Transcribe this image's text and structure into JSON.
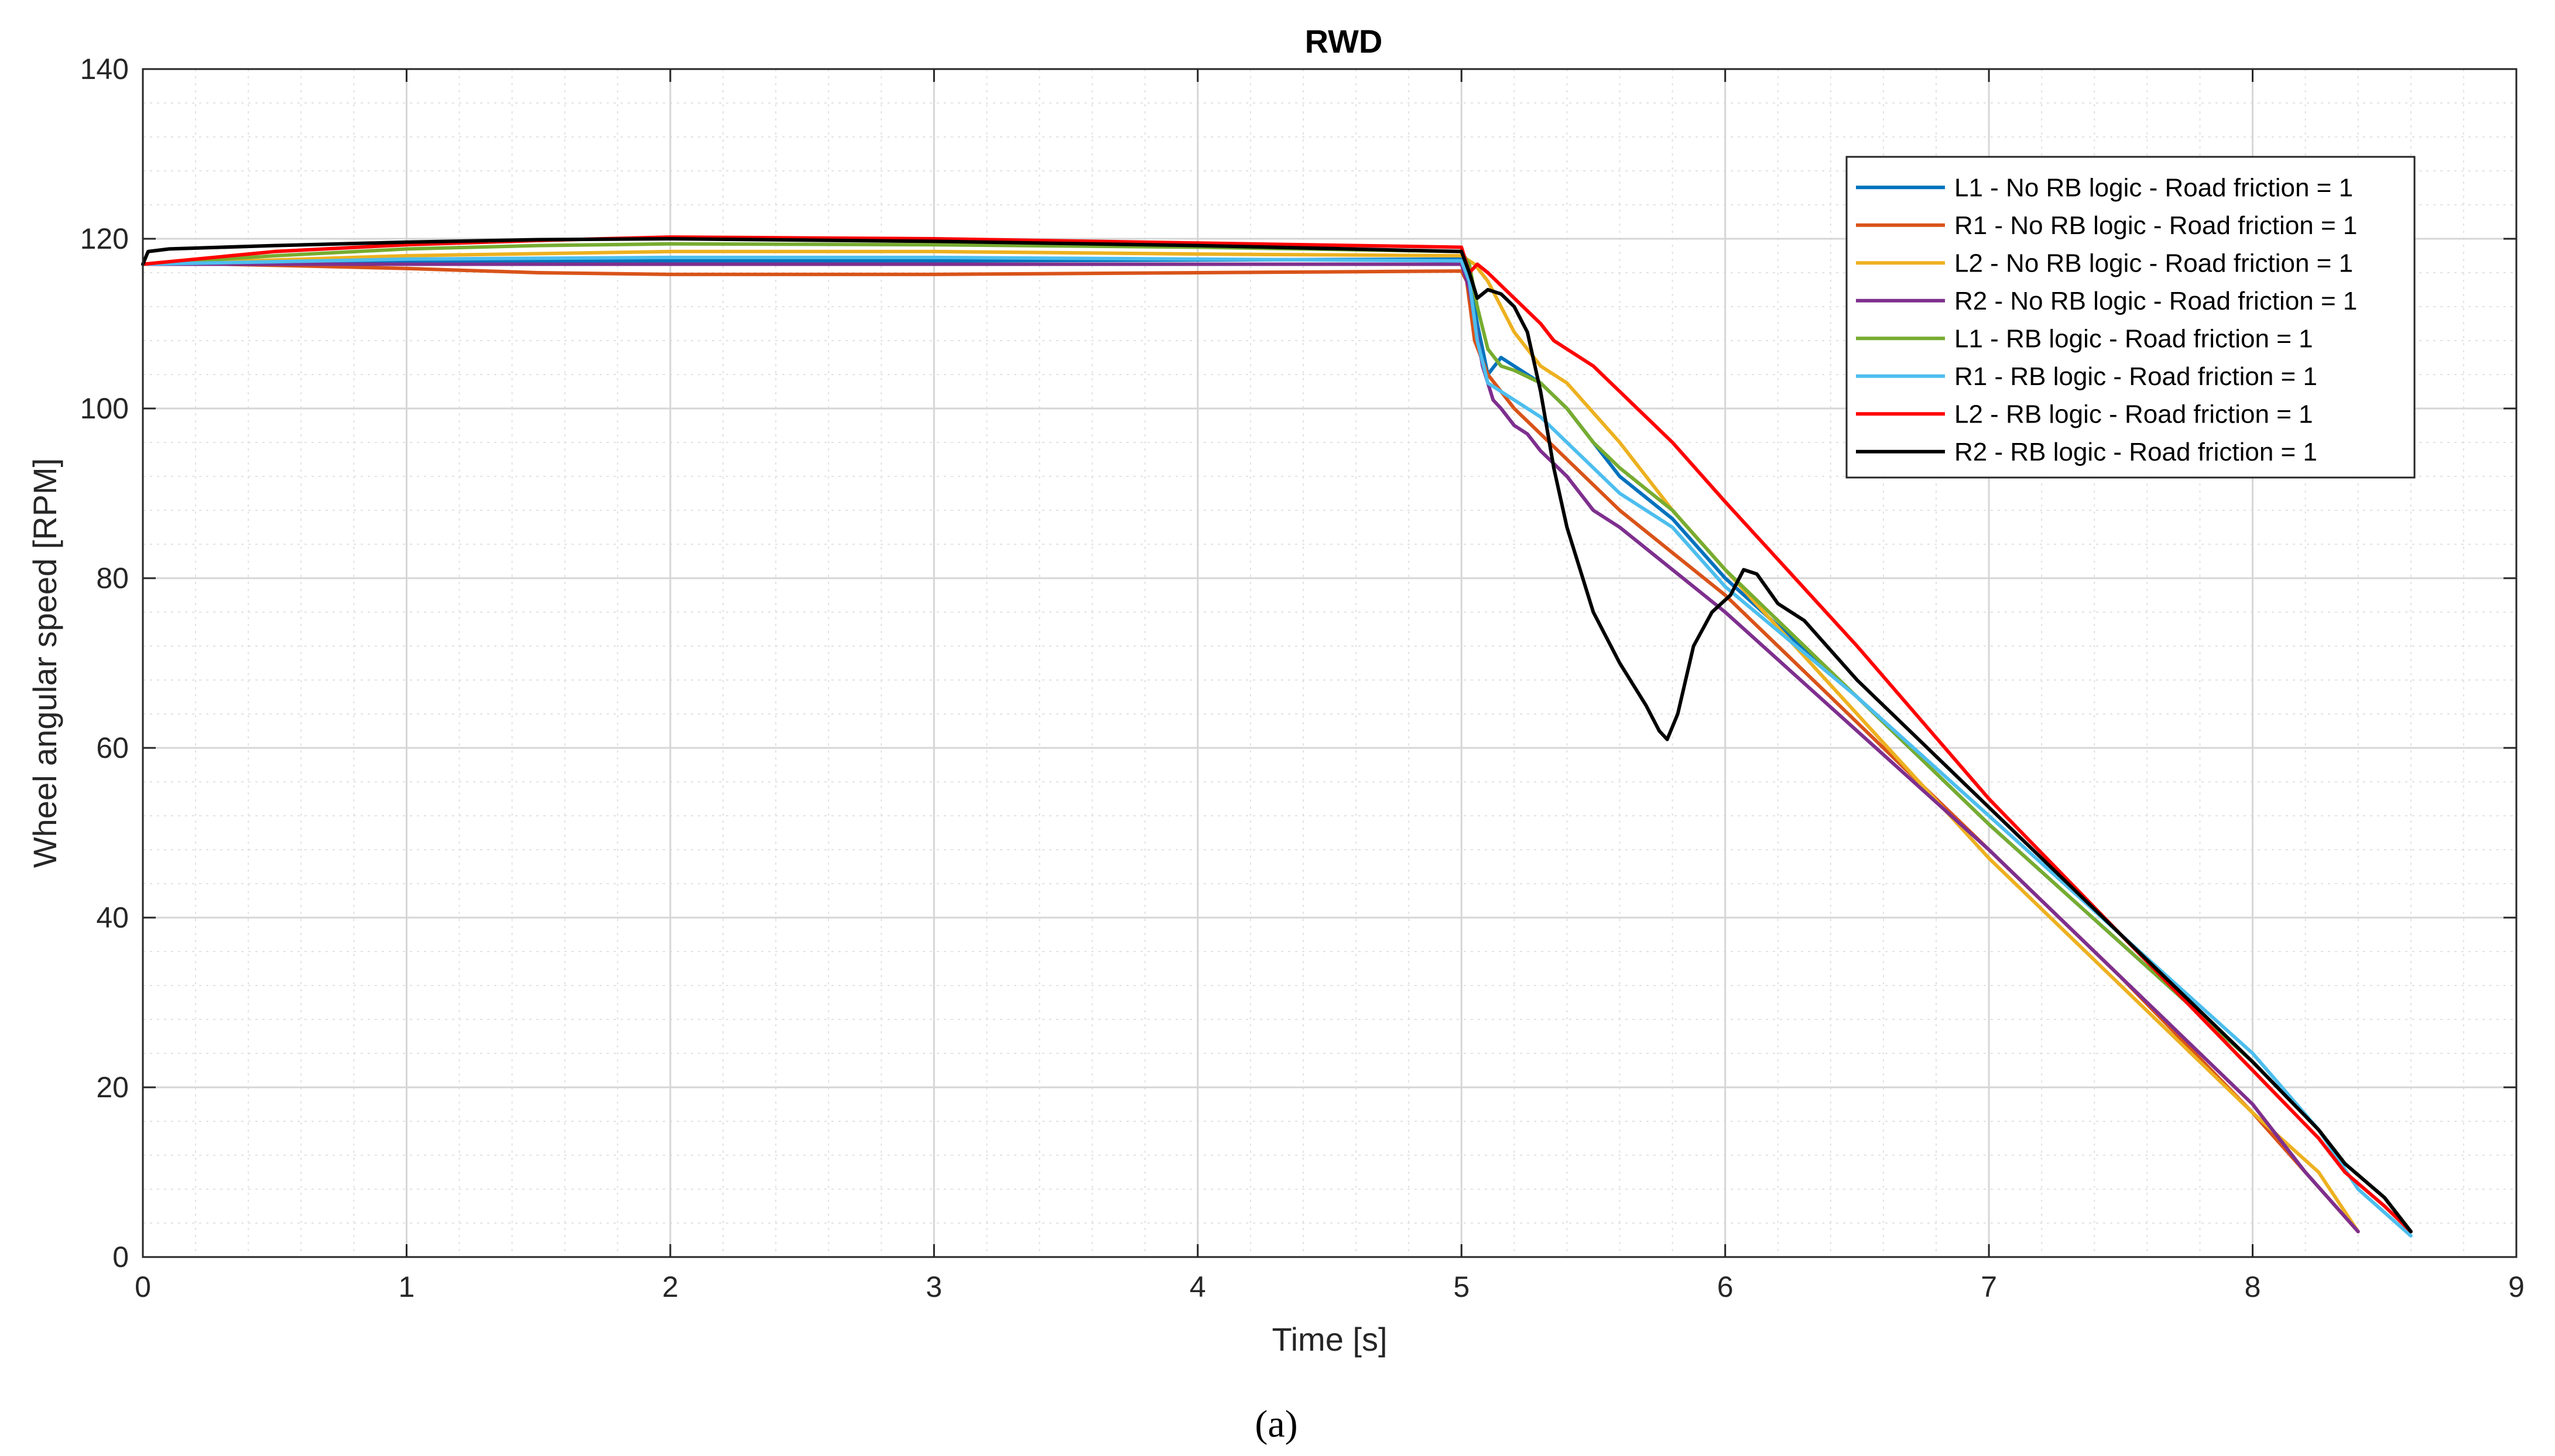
{
  "caption": "(a)",
  "chart_data": {
    "type": "line",
    "title": "RWD",
    "xlabel": "Time [s]",
    "ylabel": "Wheel angular speed [RPM]",
    "xlim": [
      0,
      9
    ],
    "ylim": [
      0,
      140
    ],
    "xticks": [
      0,
      1,
      2,
      3,
      4,
      5,
      6,
      7,
      8,
      9
    ],
    "yticks": [
      0,
      20,
      40,
      60,
      80,
      100,
      120,
      140
    ],
    "grid": "on",
    "minor_grid": "on",
    "legend_position": "top-right",
    "series": [
      {
        "name": "L1 - No RB logic - Road friction = 1",
        "color": "#0072BD",
        "x": [
          0,
          0.5,
          1,
          2,
          3,
          4,
          5,
          5.02,
          5.06,
          5.1,
          5.15,
          5.2,
          5.3,
          5.4,
          5.6,
          5.8,
          6,
          6.5,
          7,
          7.5,
          8,
          8.25,
          8.35,
          8.5,
          8.6
        ],
        "y": [
          117,
          117.2,
          117.3,
          117.4,
          117.4,
          117.5,
          117.6,
          117,
          110,
          104,
          106,
          105,
          103,
          100,
          92,
          87,
          80,
          66,
          51,
          37,
          23,
          15,
          11,
          7,
          3
        ]
      },
      {
        "name": "R1 - No RB logic - Road friction = 1",
        "color": "#D95319",
        "x": [
          0,
          0.3,
          0.6,
          1,
          1.5,
          2,
          2.5,
          3,
          4,
          5,
          5.02,
          5.05,
          5.1,
          5.2,
          5.4,
          5.6,
          5.8,
          6,
          6.5,
          7,
          7.5,
          8,
          8.2,
          8.4
        ],
        "y": [
          117,
          117,
          116.8,
          116.5,
          116,
          115.8,
          115.8,
          115.8,
          116,
          116.2,
          115,
          108,
          104,
          100,
          94,
          88,
          83,
          78,
          63,
          48,
          33,
          17,
          10,
          3
        ]
      },
      {
        "name": "L2 - No RB logic - Road friction = 1",
        "color": "#EDB120",
        "x": [
          0,
          0.5,
          1,
          2,
          3,
          4,
          5,
          5.05,
          5.1,
          5.2,
          5.3,
          5.4,
          5.6,
          5.8,
          6,
          6.5,
          7,
          7.5,
          8,
          8.25,
          8.4
        ],
        "y": [
          117,
          117.5,
          118,
          118.5,
          118.5,
          118.2,
          118,
          117,
          115,
          109,
          105,
          103,
          96,
          88,
          81,
          64,
          47,
          32,
          17,
          10,
          3
        ]
      },
      {
        "name": "R2 - No RB logic - Road friction = 1",
        "color": "#7E2F8E",
        "x": [
          0,
          1,
          2,
          3,
          4,
          5,
          5.03,
          5.08,
          5.12,
          5.15,
          5.2,
          5.25,
          5.3,
          5.4,
          5.5,
          5.6,
          5.8,
          6,
          6.5,
          7,
          7.5,
          8,
          8.2,
          8.4
        ],
        "y": [
          117,
          117,
          117,
          117,
          117,
          117,
          114,
          105,
          101,
          100,
          98,
          97,
          95,
          92,
          88,
          86,
          81,
          76,
          62,
          48,
          33,
          18,
          10,
          3
        ]
      },
      {
        "name": "L1 - RB logic - Road friction = 1",
        "color": "#77AC30",
        "x": [
          0,
          0.5,
          1,
          1.5,
          2,
          3,
          4,
          5,
          5.03,
          5.06,
          5.1,
          5.15,
          5.2,
          5.3,
          5.4,
          5.5,
          5.6,
          5.8,
          6,
          6.5,
          7,
          7.5,
          8,
          8.25,
          8.35,
          8.5,
          8.6
        ],
        "y": [
          117,
          118,
          118.8,
          119.2,
          119.4,
          119.3,
          119,
          118.5,
          117,
          112,
          107,
          105,
          104.5,
          103,
          100,
          96,
          93,
          88,
          81,
          66,
          51,
          37,
          23,
          15,
          11,
          7,
          3
        ]
      },
      {
        "name": "R1 - RB logic - Road friction = 1",
        "color": "#4DBEEE",
        "x": [
          0,
          0.5,
          1,
          2,
          3,
          4,
          5,
          5.03,
          5.06,
          5.1,
          5.15,
          5.2,
          5.3,
          5.4,
          5.6,
          5.8,
          6,
          6.5,
          7,
          7.5,
          8,
          8.25,
          8.4,
          8.6
        ],
        "y": [
          117,
          117.3,
          117.6,
          117.8,
          117.8,
          117.6,
          117.4,
          115,
          108,
          103,
          102,
          101,
          99,
          96,
          90,
          86,
          79,
          66,
          52,
          38,
          24,
          15,
          8,
          2.5
        ]
      },
      {
        "name": "L2 - RB logic - Road friction = 1",
        "color": "#FF0000",
        "x": [
          0,
          0.5,
          1,
          1.5,
          2,
          3,
          4,
          5,
          5.03,
          5.06,
          5.1,
          5.2,
          5.3,
          5.35,
          5.4,
          5.5,
          5.6,
          5.8,
          6,
          6.5,
          7,
          7.5,
          8,
          8.25,
          8.35,
          8.5,
          8.6
        ],
        "y": [
          117,
          118.5,
          119.3,
          119.8,
          120.2,
          120,
          119.5,
          119,
          116,
          117,
          116,
          113,
          110,
          108,
          107,
          105,
          102,
          96,
          89,
          72,
          54,
          38,
          22,
          14,
          10,
          6,
          3
        ]
      },
      {
        "name": "R2 - RB logic - Road friction = 1",
        "color": "#000000",
        "x": [
          0,
          0.02,
          0.1,
          0.5,
          1,
          1.5,
          2,
          3,
          4,
          5,
          5.03,
          5.06,
          5.1,
          5.15,
          5.2,
          5.25,
          5.3,
          5.35,
          5.4,
          5.5,
          5.6,
          5.7,
          5.75,
          5.78,
          5.82,
          5.88,
          5.95,
          6.02,
          6.07,
          6.12,
          6.2,
          6.3,
          6.5,
          7,
          7.5,
          8,
          8.25,
          8.35,
          8.5,
          8.6
        ],
        "y": [
          117,
          118.5,
          118.8,
          119.2,
          119.6,
          119.9,
          120,
          119.7,
          119.2,
          118.5,
          116,
          113,
          114,
          113.5,
          112,
          109,
          102,
          93,
          86,
          76,
          70,
          65,
          62,
          61,
          64,
          72,
          76,
          78,
          81,
          80.5,
          77,
          75,
          68,
          53,
          38,
          23,
          15,
          11,
          7,
          3
        ]
      }
    ]
  }
}
